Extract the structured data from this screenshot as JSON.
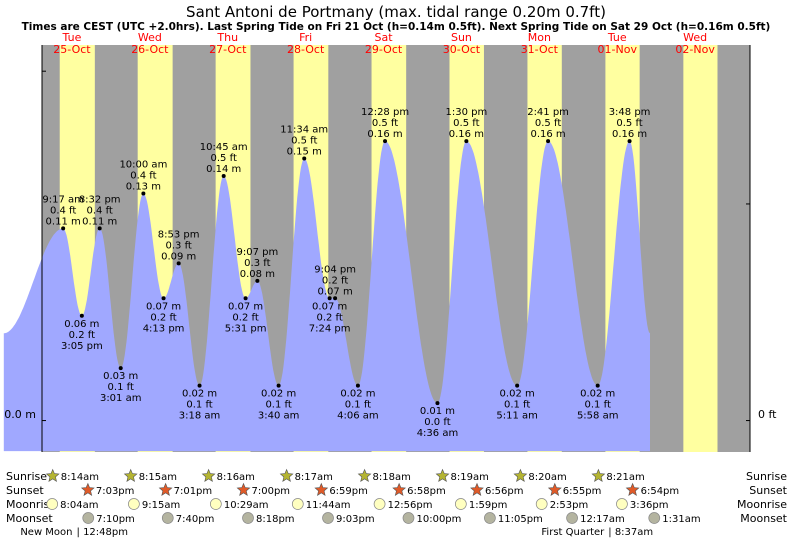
{
  "chart_data": {
    "type": "area",
    "title": "Sant Antoni de Portmany (max. tidal range 0.20m 0.7ft)",
    "subtitle": "Times are CEST (UTC +2.0hrs). Last Spring Tide on Fri 21 Oct (h=0.14m 0.5ft). Next Spring Tide on Sat 29 Oct (h=0.16m 0.5ft)",
    "y_unit_left": "m",
    "y_unit_right": "ft",
    "ylim": [
      -0.018,
      0.215
    ],
    "xlim_days": [
      -0.58,
      8.77
    ],
    "y_axis_left_label": "0.0 m",
    "y_axis_right_label": "0 ft",
    "day_ticks": [
      0.2,
      0.4
    ],
    "days": [
      {
        "weekday": "Tue",
        "date": "25-Oct",
        "sunrise": 8.233,
        "sunset": 19.05
      },
      {
        "weekday": "Wed",
        "date": "26-Oct",
        "sunrise": 8.25,
        "sunset": 19.017
      },
      {
        "weekday": "Thu",
        "date": "27-Oct",
        "sunrise": 8.267,
        "sunset": 19.0
      },
      {
        "weekday": "Fri",
        "date": "28-Oct",
        "sunrise": 8.283,
        "sunset": 18.983
      },
      {
        "weekday": "Sat",
        "date": "29-Oct",
        "sunrise": 8.3,
        "sunset": 18.967
      },
      {
        "weekday": "Sun",
        "date": "30-Oct",
        "sunrise": 8.317,
        "sunset": 18.933
      },
      {
        "weekday": "Mon",
        "date": "31-Oct",
        "sunrise": 8.333,
        "sunset": 18.917
      },
      {
        "weekday": "Tue",
        "date": "01-Nov",
        "sunrise": 8.35,
        "sunset": 18.9
      },
      {
        "weekday": "Wed",
        "date": "02-Nov",
        "sunrise": 8.367,
        "sunset": 18.883
      }
    ],
    "tides": [
      {
        "t": 0.387,
        "h": 0.11,
        "time": "9:17 am",
        "ft": "0.4 ft",
        "m": "0.11 m",
        "type": "high"
      },
      {
        "t": 0.627,
        "h": 0.06,
        "time": "3:05 pm",
        "ft": "0.2 ft",
        "m": "0.06 m",
        "type": "low"
      },
      {
        "t": 0.856,
        "h": 0.11,
        "time": "8:32 pm",
        "ft": "0.4 ft",
        "m": "0.11 m",
        "type": "high"
      },
      {
        "t": 1.126,
        "h": 0.03,
        "time": "3:01 am",
        "ft": "0.1 ft",
        "m": "0.03 m",
        "type": "low"
      },
      {
        "t": 1.417,
        "h": 0.13,
        "time": "10:00 am",
        "ft": "0.4 ft",
        "m": "0.13 m",
        "type": "high"
      },
      {
        "t": 1.676,
        "h": 0.07,
        "time": "4:13 pm",
        "ft": "0.2 ft",
        "m": "0.07 m",
        "type": "low"
      },
      {
        "t": 1.87,
        "h": 0.09,
        "time": "8:53 pm",
        "ft": "0.3 ft",
        "m": "0.09 m",
        "type": "high"
      },
      {
        "t": 2.138,
        "h": 0.02,
        "time": "3:18 am",
        "ft": "0.1 ft",
        "m": "0.02 m",
        "type": "low"
      },
      {
        "t": 2.448,
        "h": 0.14,
        "time": "10:45 am",
        "ft": "0.5 ft",
        "m": "0.14 m",
        "type": "high"
      },
      {
        "t": 2.729,
        "h": 0.07,
        "time": "5:31 pm",
        "ft": "0.2 ft",
        "m": "0.07 m",
        "type": "low"
      },
      {
        "t": 2.88,
        "h": 0.08,
        "time": "9:07 pm",
        "ft": "0.3 ft",
        "m": "0.08 m",
        "type": "high"
      },
      {
        "t": 3.153,
        "h": 0.02,
        "time": "3:40 am",
        "ft": "0.1 ft",
        "m": "0.02 m",
        "type": "low"
      },
      {
        "t": 3.482,
        "h": 0.15,
        "time": "11:34 am",
        "ft": "0.5 ft",
        "m": "0.15 m",
        "type": "high"
      },
      {
        "t": 3.808,
        "h": 0.07,
        "time": "7:24 pm",
        "ft": "0.2 ft",
        "m": "0.07 m",
        "type": "low"
      },
      {
        "t": 3.878,
        "h": 0.07,
        "time": "9:04 pm",
        "ft": "0.2 ft",
        "m": "0.07 m",
        "type": "high"
      },
      {
        "t": 4.171,
        "h": 0.02,
        "time": "4:06 am",
        "ft": "0.1 ft",
        "m": "0.02 m",
        "type": "low"
      },
      {
        "t": 4.519,
        "h": 0.16,
        "time": "12:28 pm",
        "ft": "0.5 ft",
        "m": "0.16 m",
        "type": "high"
      },
      {
        "t": 5.192,
        "h": 0.01,
        "time": "4:36 am",
        "ft": "0.0 ft",
        "m": "0.01 m",
        "type": "low"
      },
      {
        "t": 5.563,
        "h": 0.16,
        "time": "1:30 pm",
        "ft": "0.5 ft",
        "m": "0.16 m",
        "type": "high"
      },
      {
        "t": 6.215,
        "h": 0.02,
        "time": "5:11 am",
        "ft": "0.1 ft",
        "m": "0.02 m",
        "type": "low"
      },
      {
        "t": 6.612,
        "h": 0.16,
        "time": "2:41 pm",
        "ft": "0.5 ft",
        "m": "0.16 m",
        "type": "high"
      },
      {
        "t": 7.249,
        "h": 0.02,
        "time": "5:58 am",
        "ft": "0.1 ft",
        "m": "0.02 m",
        "type": "low"
      },
      {
        "t": 7.658,
        "h": 0.16,
        "time": "3:48 pm",
        "ft": "0.5 ft",
        "m": "0.16 m",
        "type": "high"
      }
    ],
    "curve_range": {
      "start": -0.375,
      "end": 7.92,
      "start_h": 0.05,
      "end_h": 0.05
    },
    "row_labels": {
      "sunrise": "Sunrise",
      "sunset": "Sunset",
      "moonrise": "Moonrise",
      "moonset": "Moonset"
    },
    "sun_events": [
      {
        "kind": "sunrise",
        "t": 0.343,
        "text": "8:14am"
      },
      {
        "kind": "sunset",
        "t": 0.794,
        "text": "7:03pm"
      },
      {
        "kind": "sunrise",
        "t": 1.344,
        "text": "8:15am"
      },
      {
        "kind": "sunset",
        "t": 1.792,
        "text": "7:01pm"
      },
      {
        "kind": "sunrise",
        "t": 2.344,
        "text": "8:16am"
      },
      {
        "kind": "sunset",
        "t": 2.792,
        "text": "7:00pm"
      },
      {
        "kind": "sunrise",
        "t": 3.345,
        "text": "8:17am"
      },
      {
        "kind": "sunset",
        "t": 3.791,
        "text": "6:59pm"
      },
      {
        "kind": "sunrise",
        "t": 4.346,
        "text": "8:18am"
      },
      {
        "kind": "sunset",
        "t": 4.79,
        "text": "6:58pm"
      },
      {
        "kind": "sunrise",
        "t": 5.347,
        "text": "8:19am"
      },
      {
        "kind": "sunset",
        "t": 5.789,
        "text": "6:56pm"
      },
      {
        "kind": "sunrise",
        "t": 6.347,
        "text": "8:20am"
      },
      {
        "kind": "sunset",
        "t": 6.788,
        "text": "6:55pm"
      },
      {
        "kind": "sunrise",
        "t": 7.348,
        "text": "8:21am"
      },
      {
        "kind": "sunset",
        "t": 7.787,
        "text": "6:54pm"
      }
    ],
    "moon_events": [
      {
        "kind": "moonrise",
        "t": 0.336,
        "text": "8:04am"
      },
      {
        "kind": "moonset",
        "t": 0.799,
        "text": "7:10pm"
      },
      {
        "kind": "moonrise",
        "t": 1.385,
        "text": "9:15am"
      },
      {
        "kind": "moonset",
        "t": 1.82,
        "text": "7:40pm"
      },
      {
        "kind": "moonrise",
        "t": 2.437,
        "text": "10:29am"
      },
      {
        "kind": "moonset",
        "t": 2.85,
        "text": "8:18pm"
      },
      {
        "kind": "moonrise",
        "t": 3.489,
        "text": "11:44am"
      },
      {
        "kind": "moonset",
        "t": 3.877,
        "text": "9:03pm"
      },
      {
        "kind": "moonrise",
        "t": 4.539,
        "text": "12:56pm"
      },
      {
        "kind": "moonset",
        "t": 4.91,
        "text": "10:00pm"
      },
      {
        "kind": "moonrise",
        "t": 5.582,
        "text": "1:59pm"
      },
      {
        "kind": "moonset",
        "t": 5.955,
        "text": "11:05pm"
      },
      {
        "kind": "moonrise",
        "t": 6.62,
        "text": "2:53pm"
      },
      {
        "kind": "moonset",
        "t": 7.01,
        "text": "12:17am"
      },
      {
        "kind": "moonrise",
        "t": 7.65,
        "text": "3:36pm"
      },
      {
        "kind": "moonset",
        "t": 8.065,
        "text": "1:31am"
      }
    ],
    "moon_phases": [
      {
        "text": "New Moon",
        "time": "12:48pm",
        "t": 0.533
      },
      {
        "text": "First Quarter",
        "time": "8:37am",
        "t": 7.359
      }
    ],
    "colors": {
      "night": "#a0a0a0",
      "day": "#ffffa0",
      "tide": "#a0a8ff",
      "day_label": "#ff0000",
      "star": "#b4b432",
      "sunset_star": "#e05a28",
      "moonrise": "#ffffc0",
      "moonset": "#b4b4a0"
    }
  }
}
